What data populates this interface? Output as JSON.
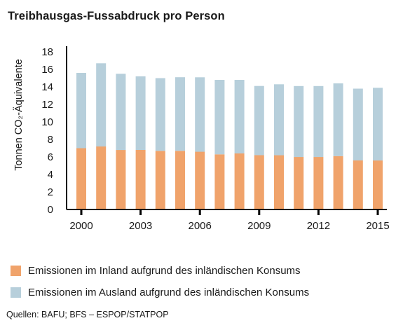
{
  "title": "Treibhausgas-Fussabdruck pro Person",
  "source": "Quellen: BAFU; BFS – ESPOP/STATPOP",
  "colors": {
    "inland": "#f0a36b",
    "ausland": "#b7cfdb",
    "axis": "#000000"
  },
  "chart_data": {
    "type": "bar",
    "stacked": true,
    "categories": [
      2000,
      2001,
      2002,
      2003,
      2004,
      2005,
      2006,
      2007,
      2008,
      2009,
      2010,
      2011,
      2012,
      2013,
      2014,
      2015
    ],
    "x_tick_labels": [
      "2000",
      "2003",
      "2006",
      "2009",
      "2012",
      "2015"
    ],
    "ylabel": "Tonnen CO₂-Äquivalente",
    "ylim": [
      0,
      18
    ],
    "y_ticks": [
      0,
      2,
      4,
      6,
      8,
      10,
      12,
      14,
      16,
      18
    ],
    "grid": false,
    "legend_position": "bottom",
    "series": [
      {
        "name": "Emissionen im Inland aufgrund des inländischen Konsums",
        "values": [
          7.0,
          7.2,
          6.8,
          6.8,
          6.7,
          6.7,
          6.6,
          6.3,
          6.4,
          6.2,
          6.2,
          6.0,
          6.0,
          6.1,
          5.6,
          5.6
        ]
      },
      {
        "name": "Emissionen im Ausland aufgrund des inländischen Konsums",
        "values": [
          8.6,
          9.5,
          8.7,
          8.4,
          8.3,
          8.4,
          8.5,
          8.5,
          8.4,
          7.9,
          8.1,
          8.1,
          8.1,
          8.3,
          8.2,
          8.3
        ]
      }
    ]
  }
}
